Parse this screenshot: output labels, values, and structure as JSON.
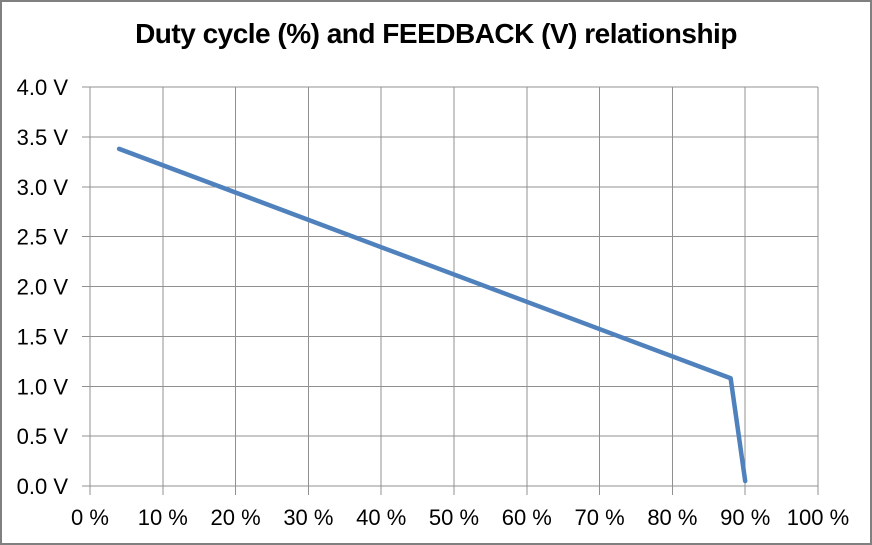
{
  "chart_data": {
    "type": "line",
    "title": "Duty cycle (%) and FEEDBACK (V) relationship",
    "xlabel": "",
    "ylabel": "",
    "xlim": [
      0,
      100
    ],
    "ylim": [
      0,
      4
    ],
    "x_ticks": [
      "0 %",
      "10 %",
      "20 %",
      "30 %",
      "40 %",
      "50 %",
      "60 %",
      "70 %",
      "80 %",
      "90 %",
      "100 %"
    ],
    "y_ticks": [
      "4.0 V",
      "3.5 V",
      "3.0 V",
      "2.5 V",
      "2.0 V",
      "1.5 V",
      "1.0 V",
      "0.5 V",
      "0.0 V"
    ],
    "grid": true,
    "legend_position": "none",
    "series": [
      {
        "name": "FEEDBACK",
        "color": "#4F81BD",
        "points": [
          [
            4,
            3.38
          ],
          [
            88,
            1.08
          ],
          [
            90,
            0.05
          ]
        ]
      }
    ],
    "colors": {
      "grid": "#909090",
      "text": "#000000",
      "background": "#FFFFFF",
      "frame_border": "#808080"
    }
  }
}
